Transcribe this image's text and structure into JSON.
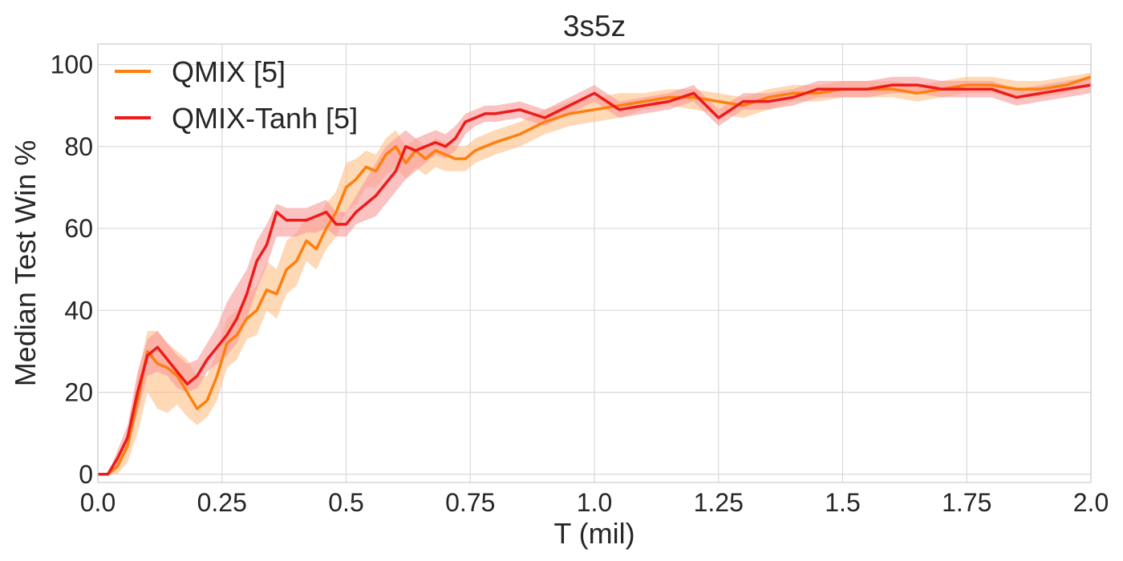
{
  "chart_data": {
    "type": "line",
    "title": "3s5z",
    "xlabel": "T (mil)",
    "ylabel": "Median Test Win %",
    "xlim": [
      0,
      2.0
    ],
    "ylim": [
      -2,
      105
    ],
    "xticks": [
      0,
      0.25,
      0.5,
      0.75,
      1.0,
      1.25,
      1.5,
      1.75,
      2.0
    ],
    "xtick_labels": [
      "0.0",
      "0.25",
      "0.5",
      "0.75",
      "1.0",
      "1.25",
      "1.5",
      "1.75",
      "2.0"
    ],
    "yticks": [
      0,
      20,
      40,
      60,
      80,
      100
    ],
    "ytick_labels": [
      "0",
      "20",
      "40",
      "60",
      "80",
      "100"
    ],
    "grid": true,
    "legend_position": "top-left",
    "series": [
      {
        "name": "QMIX [5]",
        "color": "#ff7f0e",
        "band_color": "#ffbe86",
        "x": [
          0,
          0.02,
          0.04,
          0.06,
          0.08,
          0.1,
          0.12,
          0.14,
          0.16,
          0.18,
          0.2,
          0.22,
          0.24,
          0.26,
          0.28,
          0.3,
          0.32,
          0.34,
          0.36,
          0.38,
          0.4,
          0.42,
          0.44,
          0.46,
          0.48,
          0.5,
          0.52,
          0.54,
          0.56,
          0.58,
          0.6,
          0.62,
          0.64,
          0.66,
          0.68,
          0.7,
          0.72,
          0.74,
          0.76,
          0.78,
          0.8,
          0.85,
          0.9,
          0.95,
          1.0,
          1.05,
          1.1,
          1.15,
          1.2,
          1.25,
          1.3,
          1.35,
          1.4,
          1.45,
          1.5,
          1.55,
          1.6,
          1.65,
          1.7,
          1.75,
          1.8,
          1.85,
          1.9,
          1.95,
          2.0
        ],
        "y": [
          0,
          0,
          2,
          7,
          18,
          30,
          27,
          26,
          24,
          20,
          16,
          18,
          24,
          32,
          34,
          38,
          40,
          45,
          44,
          50,
          52,
          57,
          55,
          60,
          64,
          70,
          72,
          75,
          74,
          78,
          80,
          76,
          79,
          77,
          79,
          78,
          77,
          77,
          79,
          80,
          81,
          83,
          86,
          88,
          89,
          90,
          91,
          92,
          92,
          91,
          90,
          92,
          93,
          93,
          94,
          94,
          94,
          93,
          94,
          95,
          95,
          94,
          94,
          95,
          97
        ],
        "lower": [
          0,
          0,
          0,
          3,
          10,
          20,
          16,
          15,
          17,
          14,
          12,
          14,
          18,
          26,
          28,
          33,
          34,
          40,
          38,
          44,
          46,
          52,
          50,
          55,
          58,
          64,
          66,
          70,
          70,
          73,
          75,
          72,
          75,
          73,
          75,
          74,
          74,
          74,
          76,
          77,
          78,
          80,
          83,
          85,
          86,
          87,
          89,
          90,
          89,
          88,
          87,
          89,
          91,
          91,
          92,
          92,
          92,
          91,
          92,
          93,
          93,
          92,
          92,
          93,
          95
        ],
        "upper": [
          0,
          0,
          4,
          10,
          24,
          35,
          35,
          32,
          30,
          28,
          24,
          24,
          30,
          38,
          40,
          44,
          46,
          52,
          50,
          57,
          59,
          63,
          62,
          66,
          69,
          76,
          77,
          79,
          78,
          82,
          84,
          80,
          82,
          80,
          82,
          81,
          80,
          80,
          82,
          83,
          84,
          86,
          89,
          91,
          92,
          93,
          93,
          94,
          94,
          93,
          92,
          94,
          95,
          95,
          96,
          96,
          96,
          95,
          96,
          97,
          97,
          96,
          96,
          97,
          98
        ]
      },
      {
        "name": "QMIX-Tanh [5]",
        "color": "#ee1b1b",
        "band_color": "#f89a9a",
        "x": [
          0,
          0.02,
          0.04,
          0.06,
          0.08,
          0.1,
          0.12,
          0.14,
          0.16,
          0.18,
          0.2,
          0.22,
          0.24,
          0.26,
          0.28,
          0.3,
          0.32,
          0.34,
          0.36,
          0.38,
          0.4,
          0.42,
          0.44,
          0.46,
          0.48,
          0.5,
          0.52,
          0.54,
          0.56,
          0.58,
          0.6,
          0.62,
          0.64,
          0.66,
          0.68,
          0.7,
          0.72,
          0.74,
          0.76,
          0.78,
          0.8,
          0.85,
          0.9,
          0.95,
          1.0,
          1.05,
          1.1,
          1.15,
          1.2,
          1.25,
          1.3,
          1.35,
          1.4,
          1.45,
          1.5,
          1.55,
          1.6,
          1.65,
          1.7,
          1.75,
          1.8,
          1.85,
          1.9,
          1.95,
          2.0
        ],
        "y": [
          0,
          0,
          4,
          9,
          20,
          29,
          31,
          28,
          25,
          22,
          24,
          28,
          31,
          34,
          38,
          44,
          52,
          56,
          64,
          62,
          62,
          62,
          63,
          64,
          61,
          61,
          64,
          66,
          68,
          71,
          74,
          80,
          79,
          80,
          81,
          80,
          82,
          86,
          87,
          88,
          88,
          89,
          87,
          90,
          93,
          89,
          90,
          91,
          93,
          87,
          91,
          91,
          92,
          94,
          94,
          94,
          95,
          95,
          94,
          94,
          94,
          92,
          93,
          94,
          95
        ],
        "lower": [
          0,
          0,
          2,
          6,
          15,
          24,
          25,
          24,
          21,
          20,
          21,
          25,
          27,
          29,
          32,
          38,
          45,
          51,
          58,
          58,
          58,
          59,
          59,
          60,
          58,
          58,
          61,
          62,
          63,
          66,
          69,
          72,
          74,
          76,
          78,
          77,
          79,
          83,
          85,
          86,
          86,
          87,
          85,
          88,
          91,
          87,
          88,
          89,
          91,
          85,
          89,
          89,
          90,
          92,
          92,
          92,
          93,
          93,
          92,
          92,
          92,
          90,
          91,
          92,
          93
        ],
        "upper": [
          0,
          0,
          6,
          12,
          25,
          33,
          35,
          32,
          29,
          27,
          28,
          32,
          36,
          42,
          46,
          50,
          57,
          61,
          66,
          65,
          65,
          65,
          66,
          67,
          64,
          64,
          68,
          72,
          76,
          80,
          82,
          84,
          82,
          83,
          84,
          83,
          85,
          88,
          89,
          90,
          90,
          91,
          89,
          92,
          95,
          91,
          92,
          93,
          95,
          89,
          93,
          93,
          94,
          96,
          96,
          96,
          97,
          97,
          96,
          96,
          96,
          94,
          95,
          96,
          97
        ]
      }
    ]
  }
}
